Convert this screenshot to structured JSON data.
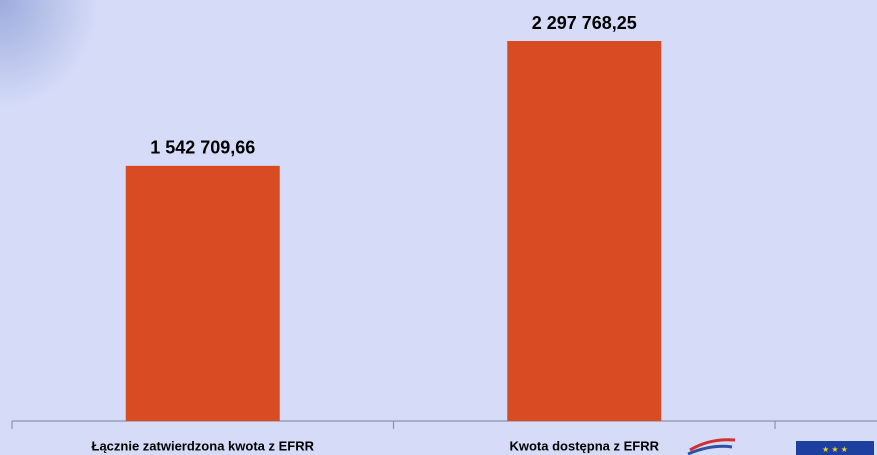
{
  "chart_data": {
    "type": "bar",
    "categories": [
      "Łącznie zatwierdzona kwota z EFRR",
      "Kwota dostępna z EFRR"
    ],
    "values": [
      1542709.66,
      2297768.25
    ],
    "value_labels": [
      "1 542 709,66",
      "2 297 768,25"
    ],
    "color": "#d84b23"
  }
}
